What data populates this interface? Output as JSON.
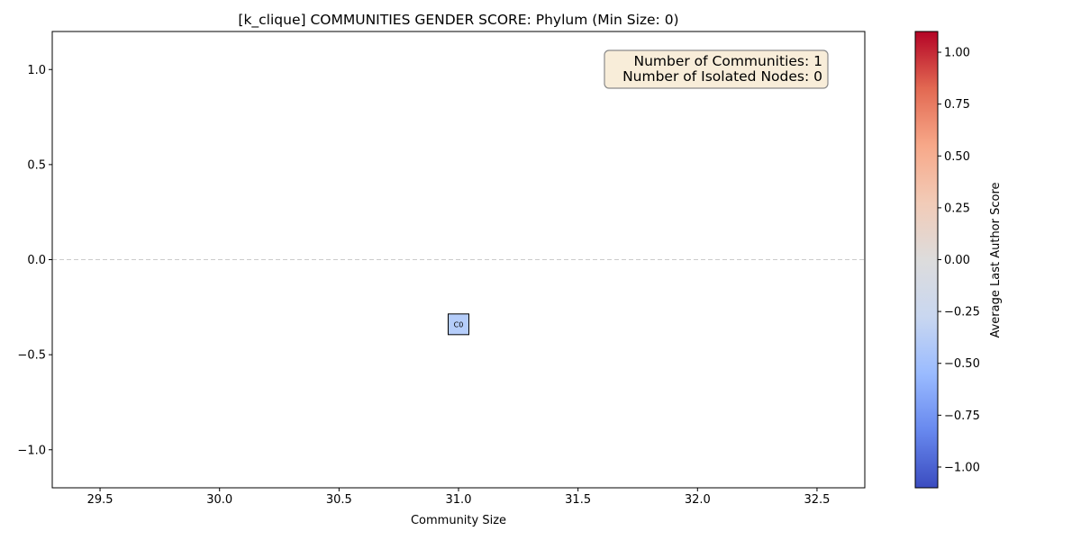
{
  "chart_data": {
    "type": "scatter",
    "title": "[k_clique] COMMUNITIES GENDER SCORE: Phylum (Min Size: 0)",
    "xlabel": "Community Size",
    "ylabel": "",
    "xlim": [
      29.3,
      32.7
    ],
    "ylim": [
      -1.2,
      1.2
    ],
    "x_ticks": [
      29.5,
      30.0,
      30.5,
      31.0,
      31.5,
      32.0,
      32.5
    ],
    "x_tick_labels": [
      "29.5",
      "30.0",
      "30.5",
      "31.0",
      "31.5",
      "32.0",
      "32.5"
    ],
    "y_ticks": [
      1.0,
      0.5,
      0.0,
      -0.5,
      -1.0
    ],
    "y_tick_labels": [
      "1.0",
      "0.5",
      "0.0",
      "−0.5",
      "−1.0"
    ],
    "reference_line": {
      "y": 0.0,
      "style": "dashed",
      "color": "#cccccc"
    },
    "points": [
      {
        "x": 31.0,
        "y": -0.34,
        "label": "C0",
        "color_value": -0.42,
        "fill": "#b5cdfa",
        "marker": "square"
      }
    ],
    "annotation": {
      "lines": [
        "Number of Communities: 1",
        "Number of Isolated Nodes: 0"
      ],
      "placement": "top-right",
      "background": "#f8edd9",
      "border": "#8a8a8a"
    },
    "colorbar": {
      "label": "Average Last Author Score",
      "colormap": "coolwarm",
      "range": [
        -1.1,
        1.1
      ],
      "ticks": [
        1.0,
        0.75,
        0.5,
        0.25,
        0.0,
        -0.25,
        -0.5,
        -0.75,
        -1.0
      ],
      "tick_labels": [
        "1.00",
        "0.75",
        "0.50",
        "0.25",
        "0.00",
        "−0.25",
        "−0.50",
        "−0.75",
        "−1.00"
      ],
      "stops": [
        "#3b4cc0",
        "#6788ee",
        "#9abbff",
        "#c9d7f0",
        "#dddcdc",
        "#f2cbb7",
        "#f7a889",
        "#e26952",
        "#b40426"
      ]
    },
    "grid": false
  }
}
